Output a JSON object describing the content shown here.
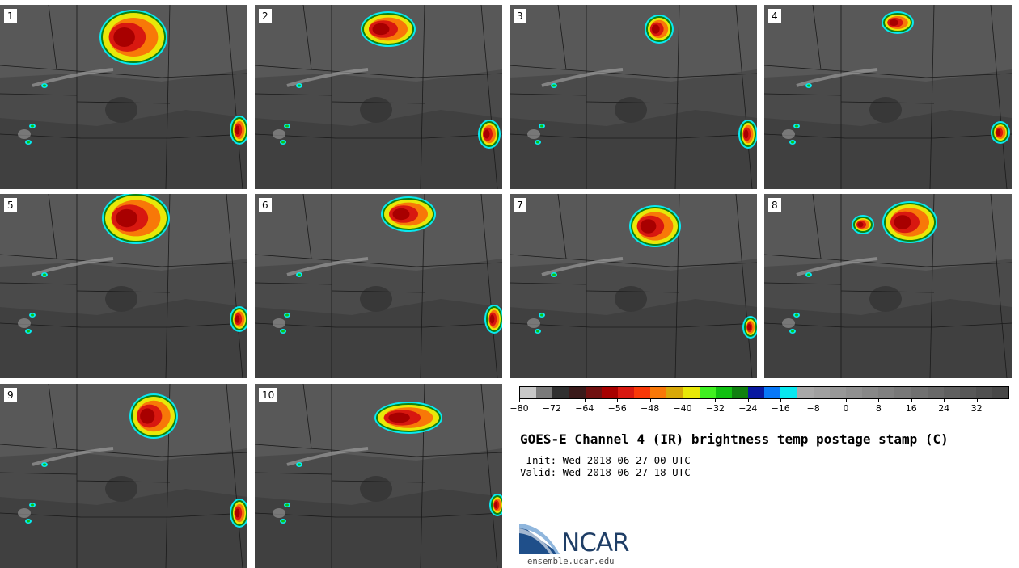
{
  "panels": [
    {
      "label": "1"
    },
    {
      "label": "2"
    },
    {
      "label": "3"
    },
    {
      "label": "4"
    },
    {
      "label": "5"
    },
    {
      "label": "6"
    },
    {
      "label": "7"
    },
    {
      "label": "8"
    },
    {
      "label": "9"
    },
    {
      "label": "10"
    }
  ],
  "colorbar": {
    "colors": [
      "#c8c8c8",
      "#7a7a7a",
      "#303030",
      "#3a1a1a",
      "#701010",
      "#a80000",
      "#d81810",
      "#f83808",
      "#f87808",
      "#d8a808",
      "#e8e808",
      "#40f020",
      "#10c010",
      "#108010",
      "#0818a0",
      "#0878f8",
      "#08e8f0",
      "#a8a8a8",
      "#a0a0a0",
      "#989898",
      "#909090",
      "#888888",
      "#808080",
      "#787878",
      "#707070",
      "#686868",
      "#606060",
      "#585858",
      "#505050",
      "#484848"
    ],
    "tick_labels": [
      "−80",
      "−72",
      "−64",
      "−56",
      "−48",
      "−40",
      "−32",
      "−24",
      "−16",
      "−8",
      "0",
      "8",
      "16",
      "24",
      "32"
    ],
    "tick_values": [
      -80,
      -72,
      -64,
      -56,
      -48,
      -40,
      -32,
      -24,
      -16,
      -8,
      0,
      8,
      16,
      24,
      32
    ],
    "min": -80,
    "max": 40
  },
  "title": "GOES-E Channel 4 (IR) brightness temp postage stamp (C)",
  "init_line": " Init: Wed 2018-06-27 00 UTC",
  "valid_line": "Valid: Wed 2018-06-27 18 UTC",
  "logo_text": "NCAR",
  "site": "ensemble.ucar.edu"
}
